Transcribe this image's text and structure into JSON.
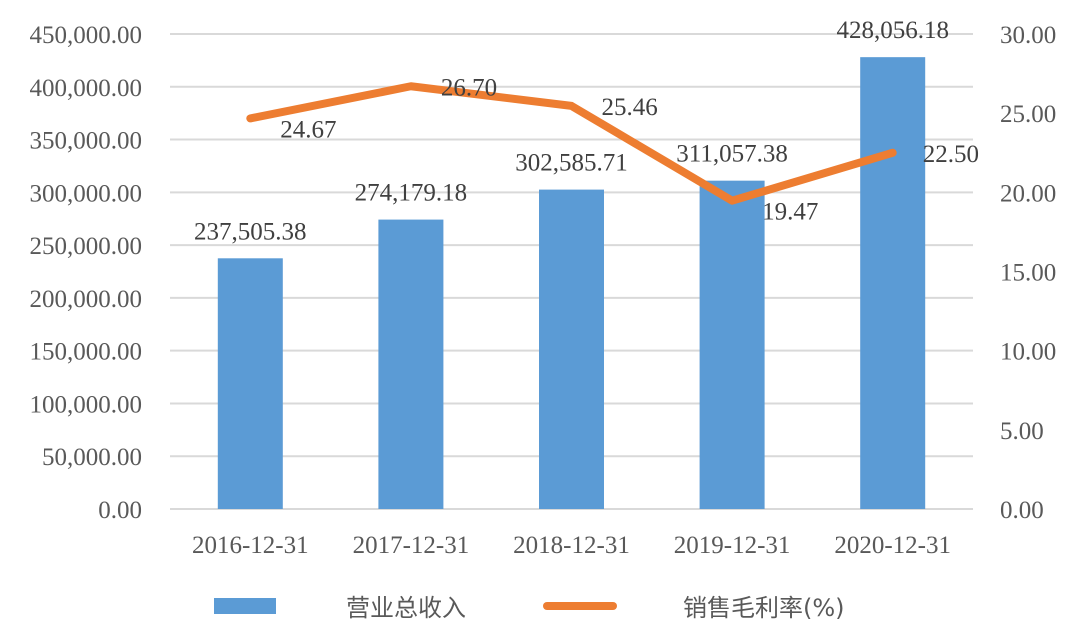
{
  "chart_data": {
    "type": "bar+line",
    "title": "",
    "categories": [
      "2016-12-31",
      "2017-12-31",
      "2018-12-31",
      "2019-12-31",
      "2020-12-31"
    ],
    "series": [
      {
        "name": "营业总收入",
        "type": "bar",
        "axis": "left",
        "color": "#5b9bd5",
        "values": [
          237505.38,
          274179.18,
          302585.71,
          311057.38,
          428056.18
        ],
        "labels": [
          "237,505.38",
          "274,179.18",
          "302,585.71",
          "311,057.38",
          "428,056.18"
        ]
      },
      {
        "name": "销售毛利率(%)",
        "type": "line",
        "axis": "right",
        "color": "#ed7d31",
        "values": [
          24.67,
          26.7,
          25.46,
          19.47,
          22.5
        ],
        "labels": [
          "24.67",
          "26.70",
          "25.46",
          "19.47",
          "22.50"
        ]
      }
    ],
    "y_left": {
      "range": [
        0,
        450000
      ],
      "ticks": [
        "0.00",
        "50,000.00",
        "100,000.00",
        "150,000.00",
        "200,000.00",
        "250,000.00",
        "300,000.00",
        "350,000.00",
        "400,000.00",
        "450,000.00"
      ]
    },
    "y_right": {
      "range": [
        0,
        30
      ],
      "ticks": [
        "0.00",
        "5.00",
        "10.00",
        "15.00",
        "20.00",
        "25.00",
        "30.00"
      ]
    },
    "xlabel": "",
    "ylabel": "",
    "grid": true,
    "legend_position": "bottom"
  },
  "legend": {
    "items": [
      {
        "label": "营业总收入",
        "kind": "bar",
        "color": "#5b9bd5"
      },
      {
        "label": "销售毛利率(%)",
        "kind": "line",
        "color": "#ed7d31"
      }
    ]
  }
}
